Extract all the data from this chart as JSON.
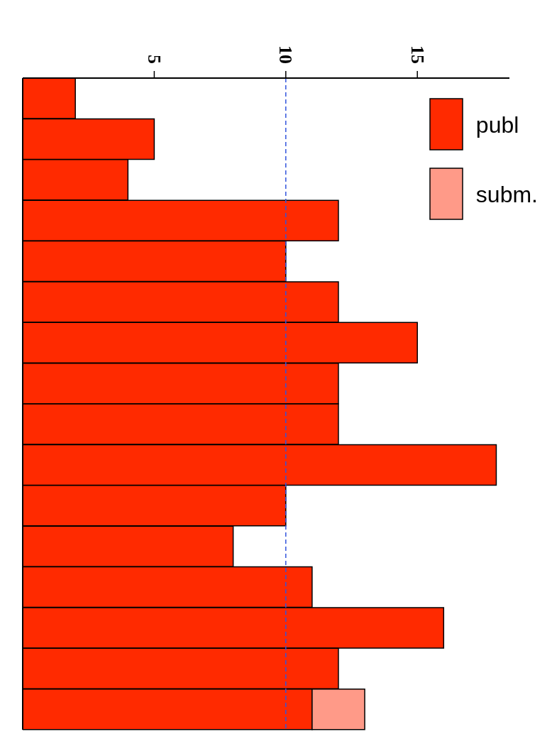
{
  "chart_data": {
    "type": "bar",
    "orientation": "horizontal",
    "stacked": true,
    "categories": [
      null,
      null,
      null,
      null,
      null,
      null,
      null,
      null,
      null,
      null,
      null,
      null,
      null,
      null,
      null,
      null
    ],
    "series": [
      {
        "name": "publ",
        "color": "#ff2a00",
        "values": [
          2,
          5,
          4,
          12,
          10,
          12,
          15,
          12,
          12,
          18,
          10,
          8,
          11,
          16,
          12,
          11
        ]
      },
      {
        "name": "subm.",
        "color": "#ff9a88",
        "values": [
          null,
          null,
          null,
          null,
          null,
          null,
          null,
          null,
          null,
          null,
          null,
          null,
          null,
          null,
          null,
          2
        ]
      }
    ],
    "xlim": [
      0,
      18.5
    ],
    "xticks": [
      5,
      10,
      15
    ],
    "grid": false,
    "legend": "top right",
    "ref_lines": [
      {
        "axis": "x",
        "value": 10,
        "color": "#3355dd",
        "line_style": "dashed"
      }
    ]
  }
}
